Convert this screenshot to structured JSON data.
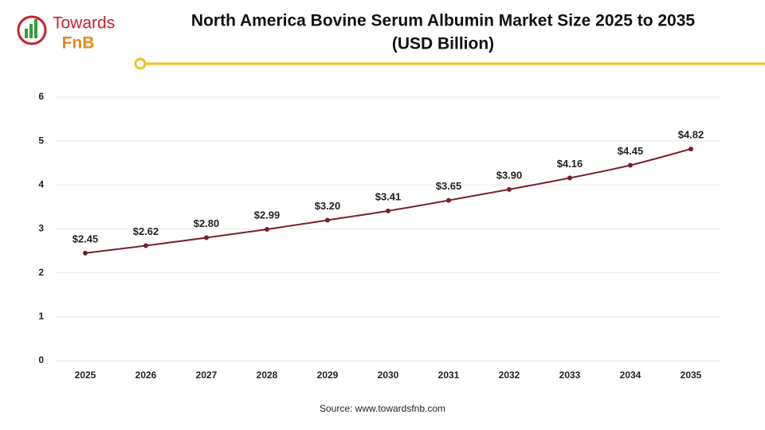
{
  "logo": {
    "line1": "Towards",
    "line2": "FnB"
  },
  "chart_data": {
    "type": "line",
    "title": "North America Bovine Serum Albumin Market Size 2025 to 2035",
    "subtitle": "(USD Billion)",
    "source": "Source: www.towardsfnb.com",
    "categories": [
      "2025",
      "2026",
      "2027",
      "2028",
      "2029",
      "2030",
      "2031",
      "2032",
      "2033",
      "2034",
      "2035"
    ],
    "values": [
      2.45,
      2.62,
      2.8,
      2.99,
      3.2,
      3.41,
      3.65,
      3.9,
      4.16,
      4.45,
      4.82
    ],
    "value_labels": [
      "$2.45",
      "$2.62",
      "$2.80",
      "$2.99",
      "$3.20",
      "$3.41",
      "$3.65",
      "$3.90",
      "$4.16",
      "$4.45",
      "$4.82"
    ],
    "color": "#7b1f2c",
    "ylim": [
      0,
      6
    ],
    "yticks": [
      0,
      1,
      2,
      3,
      4,
      5,
      6
    ],
    "grid": true
  }
}
